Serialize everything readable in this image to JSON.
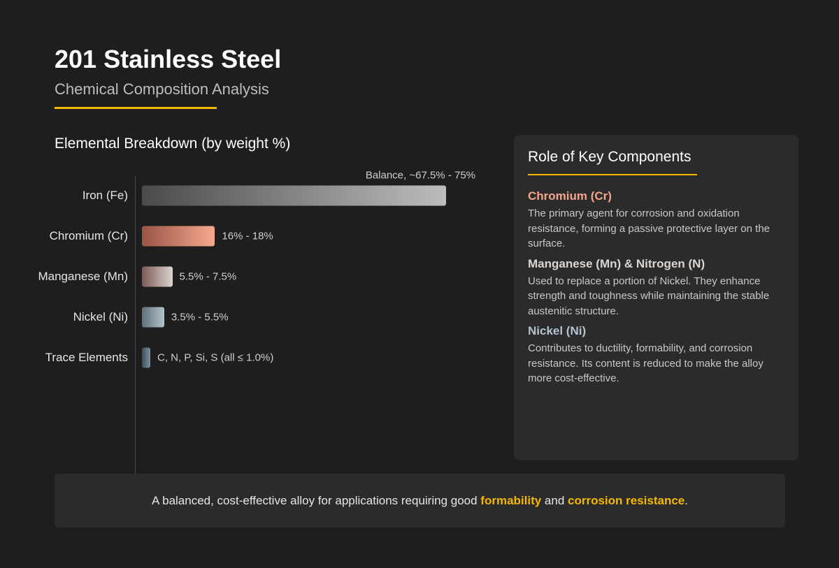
{
  "header": {
    "title": "201 Stainless Steel",
    "subtitle": "Chemical Composition Analysis"
  },
  "accent_color": "#f5b800",
  "chart_data": {
    "type": "bar",
    "orientation": "horizontal",
    "title": "Elemental Breakdown (by weight %)",
    "categories": [
      "Iron (Fe)",
      "Chromium (Cr)",
      "Manganese (Mn)",
      "Nickel (Ni)",
      "Trace Elements"
    ],
    "ranges": [
      [
        67.5,
        75
      ],
      [
        16,
        18
      ],
      [
        5.5,
        7.5
      ],
      [
        3.5,
        5.5
      ],
      [
        0,
        1.0
      ]
    ],
    "data_labels": [
      "Balance, ~67.5% - 75%",
      "16% - 18%",
      "5.5% - 7.5%",
      "3.5% - 5.5%",
      "C, N, P, Si, S (all ≤ 1.0%)"
    ],
    "colors": [
      [
        "#4a4a4a",
        "#bdbdbd"
      ],
      [
        "#9a5545",
        "#f6a88f"
      ],
      [
        "#7a5a55",
        "#dcd6d2"
      ],
      [
        "#5c707b",
        "#b4c4cc"
      ],
      [
        "#3e525e",
        "#7c909b"
      ]
    ]
  },
  "panel": {
    "title": "Role of Key Components",
    "items": [
      {
        "heading": "Chromium (Cr)",
        "color": "#f4a58c",
        "text": "The primary agent for corrosion and oxidation resistance, forming a passive protective layer on the surface."
      },
      {
        "heading": "Manganese (Mn) & Nitrogen (N)",
        "color": "#dcd6d2",
        "text": "Used to replace a portion of Nickel. They enhance strength and toughness while maintaining the stable austenitic structure."
      },
      {
        "heading": "Nickel (Ni)",
        "color": "#b4c4cc",
        "text": "Contributes to ductility, formability, and corrosion resistance. Its content is reduced to make the alloy more cost-effective."
      }
    ]
  },
  "footer": {
    "pre": "A balanced, cost-effective alloy for applications requiring good ",
    "hl1": "formability",
    "mid": " and ",
    "hl2": "corrosion resistance",
    "post": "."
  }
}
